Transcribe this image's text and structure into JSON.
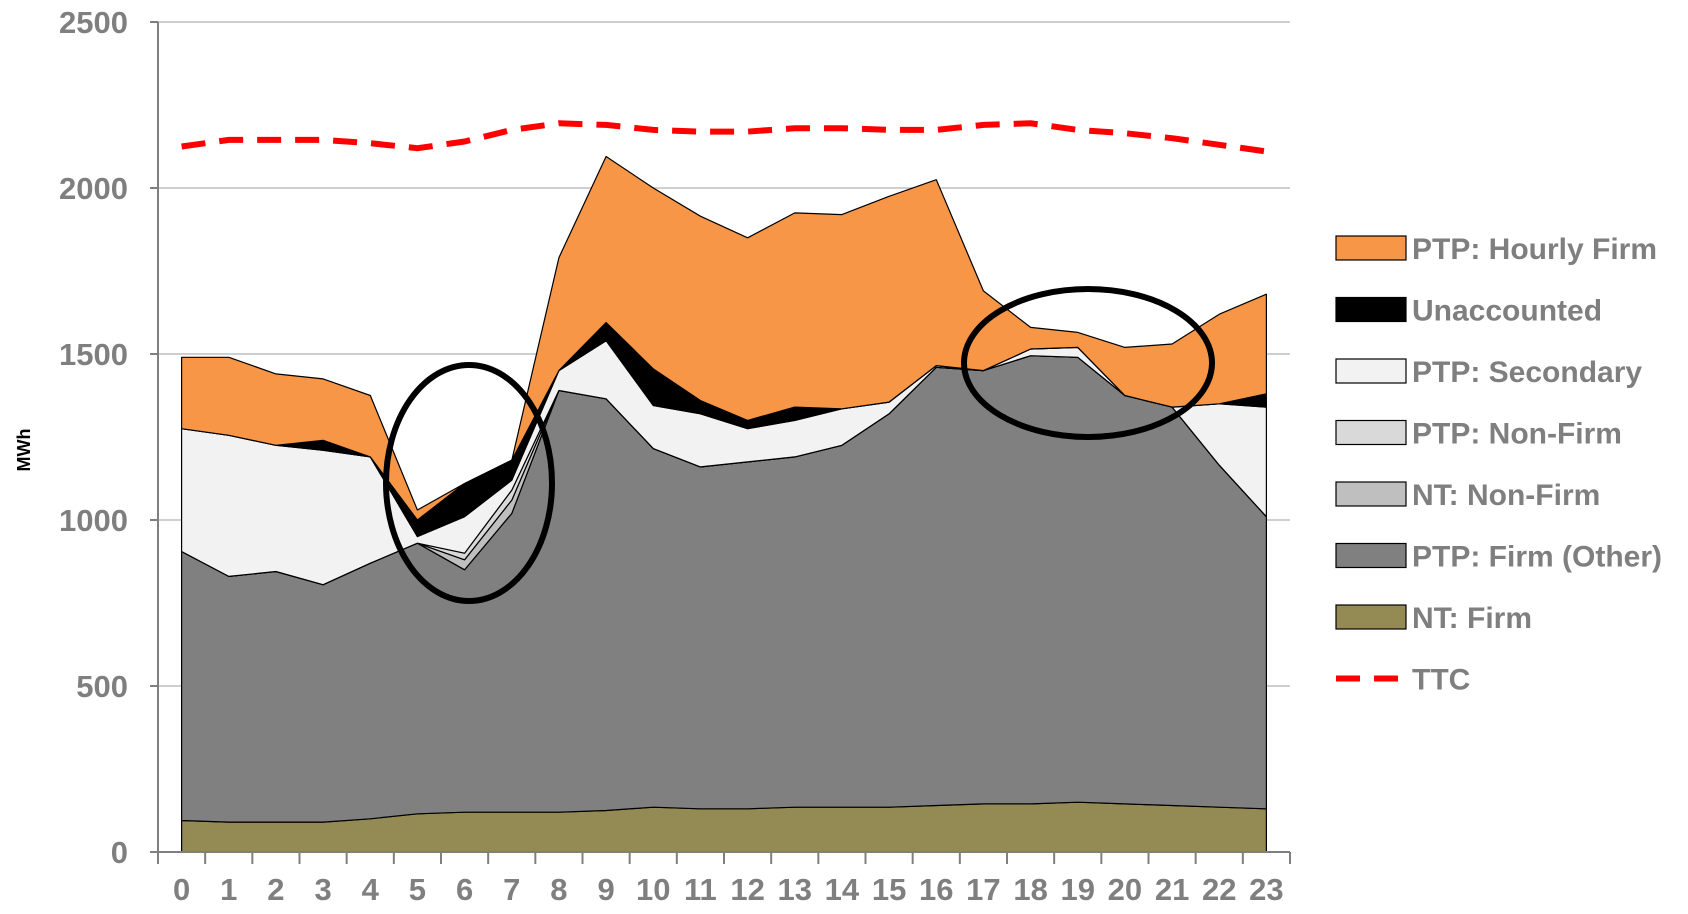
{
  "chart_data": {
    "type": "area",
    "title": "",
    "xlabel": "",
    "ylabel": "MWh",
    "x": [
      0,
      1,
      2,
      3,
      4,
      5,
      6,
      7,
      8,
      9,
      10,
      11,
      12,
      13,
      14,
      15,
      16,
      17,
      18,
      19,
      20,
      21,
      22,
      23
    ],
    "ylim": [
      0,
      2500
    ],
    "yticks": [
      0,
      500,
      1000,
      1500,
      2000,
      2500
    ],
    "grid": "horizontal",
    "legend_position": "right",
    "stacking": "stacked",
    "series": [
      {
        "name": "NT: Firm",
        "color": "#948a54",
        "values": [
          95,
          90,
          90,
          90,
          100,
          115,
          120,
          120,
          120,
          125,
          135,
          130,
          130,
          135,
          135,
          135,
          140,
          145,
          145,
          150,
          145,
          140,
          135,
          130
        ]
      },
      {
        "name": "PTP: Firm (Other)",
        "color": "#808080",
        "values": [
          810,
          740,
          755,
          715,
          770,
          815,
          730,
          900,
          1270,
          1240,
          1080,
          1030,
          1045,
          1055,
          1090,
          1185,
          1320,
          1305,
          1350,
          1340,
          1230,
          1200,
          1030,
          880
        ]
      },
      {
        "name": "NT: Non-Firm",
        "color": "#bfbfbf",
        "values": [
          0,
          0,
          0,
          0,
          0,
          0,
          30,
          40,
          0,
          0,
          0,
          0,
          0,
          0,
          0,
          0,
          0,
          0,
          0,
          0,
          0,
          0,
          0,
          0
        ]
      },
      {
        "name": "PTP: Non-Firm",
        "color": "#d9d9d9",
        "values": [
          0,
          0,
          0,
          0,
          0,
          0,
          20,
          30,
          0,
          0,
          0,
          0,
          0,
          0,
          0,
          0,
          0,
          0,
          0,
          0,
          0,
          0,
          0,
          0
        ]
      },
      {
        "name": "PTP: Secondary",
        "color": "#f2f2f2",
        "values": [
          370,
          425,
          380,
          405,
          320,
          20,
          110,
          30,
          60,
          175,
          130,
          160,
          100,
          110,
          110,
          35,
          5,
          0,
          20,
          30,
          0,
          0,
          185,
          330
        ]
      },
      {
        "name": "Unaccounted",
        "color": "#000000",
        "values": [
          0,
          0,
          0,
          30,
          0,
          50,
          100,
          60,
          0,
          55,
          110,
          40,
          25,
          40,
          0,
          0,
          0,
          0,
          0,
          0,
          0,
          0,
          0,
          40
        ]
      },
      {
        "name": "PTP: Hourly Firm",
        "color": "#f79646",
        "values": [
          215,
          235,
          215,
          185,
          185,
          30,
          0,
          0,
          340,
          500,
          545,
          555,
          550,
          585,
          585,
          620,
          560,
          240,
          65,
          45,
          145,
          190,
          270,
          300
        ]
      }
    ],
    "lines": [
      {
        "name": "TTC",
        "color": "#ff0000",
        "style": "dashed",
        "values": [
          2125,
          2145,
          2145,
          2145,
          2135,
          2120,
          2140,
          2175,
          2195,
          2190,
          2175,
          2170,
          2170,
          2180,
          2180,
          2175,
          2175,
          2190,
          2195,
          2175,
          2165,
          2150,
          2130,
          2110
        ]
      }
    ]
  }
}
